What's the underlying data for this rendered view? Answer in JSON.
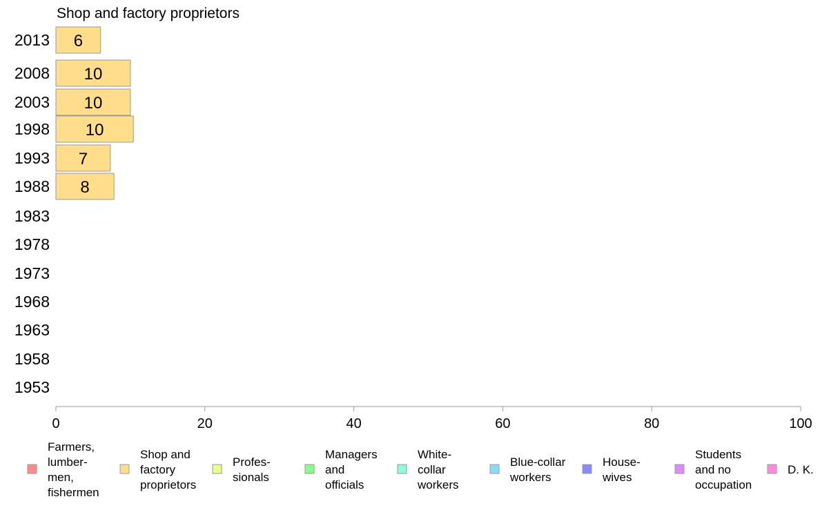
{
  "chart_data": {
    "type": "bar",
    "title": "Shop and factory proprietors",
    "categories": [
      "2013",
      "2008",
      "2003",
      "1998",
      "1993",
      "1988",
      "1983",
      "1978",
      "1973",
      "1968",
      "1963",
      "1958",
      "1953"
    ],
    "values": [
      6,
      10,
      10,
      10.4,
      7.3,
      7.8,
      null,
      null,
      null,
      null,
      null,
      null,
      null
    ],
    "value_labels": [
      "6",
      "10",
      "10",
      "10",
      "7",
      "8",
      "",
      "",
      "",
      "",
      "",
      "",
      ""
    ],
    "xlim": [
      0,
      100
    ],
    "xticks": [
      "0",
      "20",
      "40",
      "60",
      "80",
      "100"
    ],
    "bar_color": "#ffdd8a",
    "bar_stroke": "#999999",
    "legend": [
      {
        "lines": [
          "Farmers,",
          "lumber-",
          "men,",
          "fishermen"
        ],
        "color": "#ff8a8a"
      },
      {
        "lines": [
          "Shop and",
          "factory",
          "proprietors"
        ],
        "color": "#ffdd8a"
      },
      {
        "lines": [
          "Profes-",
          "sionals"
        ],
        "color": "#e5ff8a"
      },
      {
        "lines": [
          "Managers",
          "and",
          "officials"
        ],
        "color": "#8aff8a"
      },
      {
        "lines": [
          "White-",
          "collar",
          "workers"
        ],
        "color": "#8affd9"
      },
      {
        "lines": [
          "Blue-collar",
          "workers"
        ],
        "color": "#8adbff"
      },
      {
        "lines": [
          "House-",
          "wives"
        ],
        "color": "#8a8aff"
      },
      {
        "lines": [
          "Students",
          "and no",
          "occupation"
        ],
        "color": "#dd8aff"
      },
      {
        "lines": [
          "D. K."
        ],
        "color": "#ff8ae0"
      }
    ]
  }
}
